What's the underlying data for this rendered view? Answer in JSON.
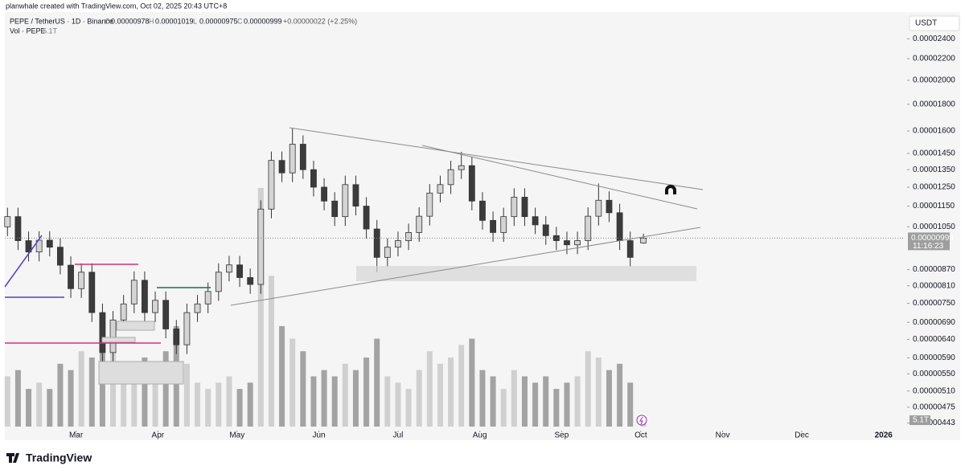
{
  "header": {
    "credit": "planwhale created with TradingView.com, Oct 02, 2025 20:43 UTC+8",
    "logo": "TradingView"
  },
  "chart_data": {
    "type": "candlestick",
    "title": "PEPE / TetherUS · 1D · Binance",
    "ohlc": [
      {
        "name": "O",
        "value": 9.78e-06,
        "label": "0.00000978"
      },
      {
        "name": "H",
        "value": 1.019e-05,
        "label": "0.00001019"
      },
      {
        "name": "L",
        "value": 9.75e-06,
        "label": "0.00000975"
      },
      {
        "name": "C",
        "value": 9.99e-06,
        "label": "0.00000999"
      }
    ],
    "change": "+0.00000022 (+2.25%)",
    "y_unit": "USDT",
    "log_scale": true,
    "last_price": {
      "value": 9.99e-06,
      "label": "0.00000999"
    },
    "countdown": "11:16:23",
    "up_color": "#d4d4d4",
    "down_color": "#3b3b3b",
    "x": [
      "2025-02-03",
      "2025-02-07",
      "2025-02-11",
      "2025-02-15",
      "2025-02-19",
      "2025-02-23",
      "2025-02-27",
      "2025-03-03",
      "2025-03-07",
      "2025-03-11",
      "2025-03-15",
      "2025-03-19",
      "2025-03-23",
      "2025-03-27",
      "2025-03-31",
      "2025-04-04",
      "2025-04-08",
      "2025-04-12",
      "2025-04-16",
      "2025-04-20",
      "2025-04-24",
      "2025-04-28",
      "2025-05-02",
      "2025-05-06",
      "2025-05-10",
      "2025-05-14",
      "2025-05-18",
      "2025-05-22",
      "2025-05-26",
      "2025-05-30",
      "2025-06-03",
      "2025-06-07",
      "2025-06-11",
      "2025-06-15",
      "2025-06-19",
      "2025-06-23",
      "2025-06-27",
      "2025-07-01",
      "2025-07-05",
      "2025-07-09",
      "2025-07-13",
      "2025-07-17",
      "2025-07-21",
      "2025-07-25",
      "2025-07-29",
      "2025-08-02",
      "2025-08-06",
      "2025-08-10",
      "2025-08-14",
      "2025-08-18",
      "2025-08-22",
      "2025-08-26",
      "2025-08-30",
      "2025-09-03",
      "2025-09-07",
      "2025-09-11",
      "2025-09-15",
      "2025-09-19",
      "2025-09-23",
      "2025-09-27",
      "2025-10-02"
    ],
    "open": [
      1.05e-05,
      1.098e-05,
      9.88e-06,
      9.4e-06,
      9.9e-06,
      9.6e-06,
      8.87e-06,
      8e-06,
      8.6e-06,
      7.2e-06,
      6.04e-06,
      6.97e-06,
      7.48e-06,
      8.3e-06,
      7.2e-06,
      7.6e-06,
      6.7e-06,
      6.25e-06,
      7.2e-06,
      7.48e-06,
      7.9e-06,
      8.6e-06,
      8.88e-06,
      8.4e-06,
      8.15e-06,
      1.135e-05,
      1.406e-05,
      1.331e-05,
      1.51e-05,
      1.35e-05,
      1.25e-05,
      1.176e-05,
      1.098e-05,
      1.264e-05,
      1.15e-05,
      1.04e-05,
      9.18e-06,
      9.6e-06,
      9.88e-06,
      1.024e-05,
      1.1e-05,
      1.218e-05,
      1.264e-05,
      1.35e-05,
      1.374e-05,
      1.176e-05,
      1.08e-05,
      1.024e-05,
      1.098e-05,
      1.196e-05,
      1.098e-05,
      1.059e-05,
      1.01e-05,
      9.88e-06,
      9.7e-06,
      9.88e-06,
      1.1e-05,
      1.18e-05,
      1.117e-05,
      9.88e-06,
      9.78e-06
    ],
    "high": [
      1.142e-05,
      1.142e-05,
      1.028e-05,
      1.03e-05,
      1.03e-05,
      9.98e-06,
      9.22e-06,
      8.94e-06,
      8.94e-06,
      7.49e-06,
      7.25e-06,
      7.78e-06,
      8.63e-06,
      8.63e-06,
      7.9e-06,
      7.9e-06,
      6.97e-06,
      7.49e-06,
      7.78e-06,
      8.22e-06,
      8.94e-06,
      9.24e-06,
      9.24e-06,
      8.74e-06,
      1.18e-05,
      1.462e-05,
      1.462e-05,
      1.62e-05,
      1.57e-05,
      1.404e-05,
      1.3e-05,
      1.223e-05,
      1.315e-05,
      1.315e-05,
      1.196e-05,
      1.082e-05,
      9.98e-06,
      1.028e-05,
      1.065e-05,
      1.144e-05,
      1.267e-05,
      1.315e-05,
      1.404e-05,
      1.46e-05,
      1.429e-05,
      1.223e-05,
      1.123e-05,
      1.142e-05,
      1.244e-05,
      1.244e-05,
      1.142e-05,
      1.101e-05,
      1.05e-05,
      1.028e-05,
      1.028e-05,
      1.144e-05,
      1.27e-05,
      1.227e-05,
      1.162e-05,
      1.028e-05,
      1.019e-05
    ],
    "low": [
      1.008e-05,
      9.48e-06,
      9.02e-06,
      9.02e-06,
      9.22e-06,
      8.52e-06,
      7.68e-06,
      7.68e-06,
      6.91e-06,
      5.8e-06,
      5.8e-06,
      6.69e-06,
      7.18e-06,
      6.91e-06,
      6.91e-06,
      6.43e-06,
      6e-06,
      6e-06,
      6.91e-06,
      7.18e-06,
      7.58e-06,
      8.26e-06,
      8.06e-06,
      7.82e-06,
      7.82e-06,
      1.09e-05,
      1.278e-05,
      1.278e-05,
      1.296e-05,
      1.2e-05,
      1.129e-05,
      1.054e-05,
      1.054e-05,
      1.104e-05,
      9.98e-06,
      8.6e-06,
      8.81e-06,
      9.22e-06,
      9.48e-06,
      9.83e-06,
      1.056e-05,
      1.169e-05,
      1.213e-05,
      1.296e-05,
      1.129e-05,
      1.037e-05,
      9.83e-06,
      9.83e-06,
      1.054e-05,
      1.054e-05,
      1.017e-05,
      9.7e-06,
      9.48e-06,
      9.31e-06,
      9.31e-06,
      9.48e-06,
      1.056e-05,
      1.072e-05,
      9.48e-06,
      8.81e-06,
      9.75e-06
    ],
    "close": [
      1.098e-05,
      9.88e-06,
      9.4e-06,
      9.9e-06,
      9.6e-06,
      8.87e-06,
      8e-06,
      8.6e-06,
      7.2e-06,
      6.04e-06,
      6.97e-06,
      7.48e-06,
      8.3e-06,
      7.2e-06,
      7.6e-06,
      6.7e-06,
      6.25e-06,
      7.2e-06,
      7.48e-06,
      7.9e-06,
      8.6e-06,
      8.88e-06,
      8.4e-06,
      8.15e-06,
      1.135e-05,
      1.406e-05,
      1.331e-05,
      1.51e-05,
      1.35e-05,
      1.25e-05,
      1.176e-05,
      1.098e-05,
      1.264e-05,
      1.15e-05,
      1.04e-05,
      9.18e-06,
      9.6e-06,
      9.88e-06,
      1.024e-05,
      1.1e-05,
      1.218e-05,
      1.264e-05,
      1.35e-05,
      1.374e-05,
      1.176e-05,
      1.08e-05,
      1.024e-05,
      1.098e-05,
      1.196e-05,
      1.098e-05,
      1.059e-05,
      1.01e-05,
      9.88e-06,
      9.7e-06,
      9.88e-06,
      1.1e-05,
      1.18e-05,
      1.117e-05,
      9.88e-06,
      9.18e-06,
      9.99e-06
    ],
    "volume": {
      "name": "Vol · PEPE",
      "last_value_label": "5.1T",
      "ylim": [
        0,
        330
      ],
      "values": [
        40,
        45,
        30,
        35,
        30,
        50,
        45,
        60,
        55,
        90,
        70,
        50,
        45,
        55,
        40,
        60,
        80,
        50,
        35,
        30,
        35,
        40,
        30,
        35,
        190,
        120,
        80,
        70,
        60,
        40,
        45,
        40,
        50,
        45,
        55,
        70,
        40,
        35,
        30,
        45,
        60,
        50,
        55,
        65,
        70,
        45,
        40,
        30,
        45,
        40,
        35,
        40,
        30,
        35,
        40,
        60,
        55,
        45,
        50,
        35,
        5.1
      ]
    },
    "xlim": [
      "2025-02-02",
      "2026-01-09"
    ],
    "xticks": [
      {
        "value": "2025-03-01",
        "label": "Mar"
      },
      {
        "value": "2025-04-01",
        "label": "Apr"
      },
      {
        "value": "2025-05-01",
        "label": "May"
      },
      {
        "value": "2025-06-01",
        "label": "Jun"
      },
      {
        "value": "2025-07-01",
        "label": "Jul"
      },
      {
        "value": "2025-08-01",
        "label": "Aug"
      },
      {
        "value": "2025-09-01",
        "label": "Sep"
      },
      {
        "value": "2025-10-01",
        "label": "Oct"
      },
      {
        "value": "2025-11-01",
        "label": "Nov"
      },
      {
        "value": "2025-12-01",
        "label": "Dec"
      },
      {
        "value": "2026-01-01",
        "label": "2026"
      }
    ],
    "ylim": [
      4.3e-06,
      2.7e-05
    ],
    "yticks": [
      {
        "value": 2.4e-05,
        "label": "0.00002400"
      },
      {
        "value": 2.2e-05,
        "label": "0.00002200"
      },
      {
        "value": 2e-05,
        "label": "0.00002000"
      },
      {
        "value": 1.8e-05,
        "label": "0.00001800"
      },
      {
        "value": 1.6e-05,
        "label": "0.00001600"
      },
      {
        "value": 1.45e-05,
        "label": "0.00001450"
      },
      {
        "value": 1.35e-05,
        "label": "0.00001350"
      },
      {
        "value": 1.25e-05,
        "label": "0.00001250"
      },
      {
        "value": 1.15e-05,
        "label": "0.00001150"
      },
      {
        "value": 1.05e-05,
        "label": "0.00001050"
      },
      {
        "value": 8.7e-06,
        "label": "0.00000870"
      },
      {
        "value": 8.1e-06,
        "label": "0.00000810"
      },
      {
        "value": 7.5e-06,
        "label": "0.00000750"
      },
      {
        "value": 6.9e-06,
        "label": "0.00000690"
      },
      {
        "value": 6.4e-06,
        "label": "0.00000640"
      },
      {
        "value": 5.9e-06,
        "label": "0.00000590"
      },
      {
        "value": 5.5e-06,
        "label": "0.00000550"
      },
      {
        "value": 5.1e-06,
        "label": "0.00000510"
      },
      {
        "value": 4.75e-06,
        "label": "0.00000475"
      },
      {
        "value": 4.43e-06,
        "label": "0.00000443"
      }
    ],
    "grid": false
  }
}
